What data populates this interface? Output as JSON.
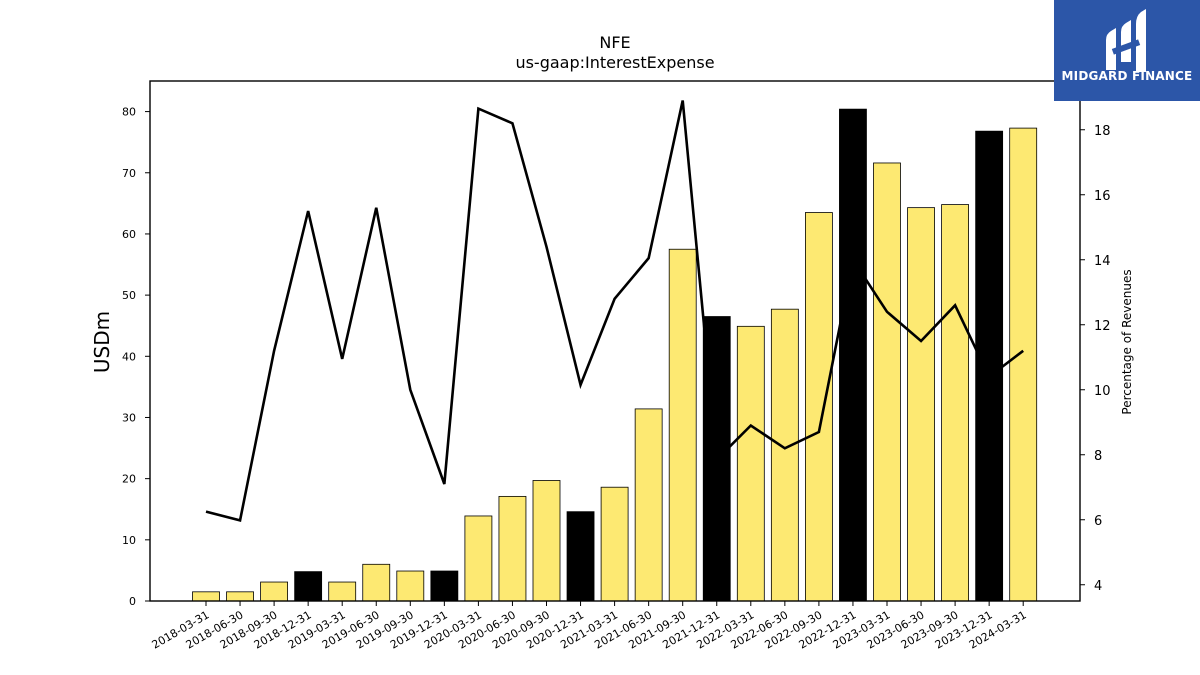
{
  "chart_data": {
    "type": "bar",
    "title": "NFE",
    "subtitle": "us-gaap:InterestExpense",
    "ylabel": "USDm",
    "y2label": "Percentage of Revenues",
    "ylim": [
      0,
      85
    ],
    "y2lim": [
      3.5,
      19.5
    ],
    "yticks": [
      0,
      10,
      20,
      30,
      40,
      50,
      60,
      70,
      80
    ],
    "y2ticks": [
      4,
      6,
      8,
      10,
      12,
      14,
      16,
      18
    ],
    "categories": [
      "2018-03-31",
      "2018-06-30",
      "2018-09-30",
      "2018-12-31",
      "2019-03-31",
      "2019-06-30",
      "2019-09-30",
      "2019-12-31",
      "2020-03-31",
      "2020-06-30",
      "2020-09-30",
      "2020-12-31",
      "2021-03-31",
      "2021-06-30",
      "2021-09-30",
      "2021-12-31",
      "2022-03-31",
      "2022-06-30",
      "2022-09-30",
      "2022-12-31",
      "2023-03-31",
      "2023-06-30",
      "2023-09-30",
      "2023-12-31",
      "2024-03-31"
    ],
    "series": [
      {
        "type": "bar",
        "values": [
          1.5,
          1.5,
          3.1,
          4.8,
          3.1,
          6.0,
          4.9,
          4.9,
          13.9,
          17.1,
          19.7,
          14.6,
          18.6,
          31.4,
          57.5,
          46.5,
          44.9,
          47.7,
          63.5,
          80.4,
          71.6,
          64.3,
          64.8,
          76.8,
          77.3
        ],
        "colors": [
          "#fde972",
          "#fde972",
          "#fde972",
          "#000000",
          "#fde972",
          "#fde972",
          "#fde972",
          "#000000",
          "#fde972",
          "#fde972",
          "#fde972",
          "#000000",
          "#fde972",
          "#fde972",
          "#fde972",
          "#000000",
          "#fde972",
          "#fde972",
          "#fde972",
          "#000000",
          "#fde972",
          "#fde972",
          "#fde972",
          "#000000",
          "#fde972"
        ]
      },
      {
        "type": "line",
        "axis": "right",
        "color": "#000000",
        "values": [
          6.25,
          5.98,
          11.2,
          15.5,
          10.95,
          15.6,
          10.0,
          7.1,
          18.65,
          18.2,
          14.4,
          10.15,
          12.8,
          14.05,
          18.9,
          7.85,
          8.9,
          8.2,
          8.7,
          14.0,
          12.4,
          11.5,
          12.6,
          10.4,
          11.2
        ]
      }
    ]
  },
  "logo": {
    "name": "MIDGARD FINANCE"
  }
}
